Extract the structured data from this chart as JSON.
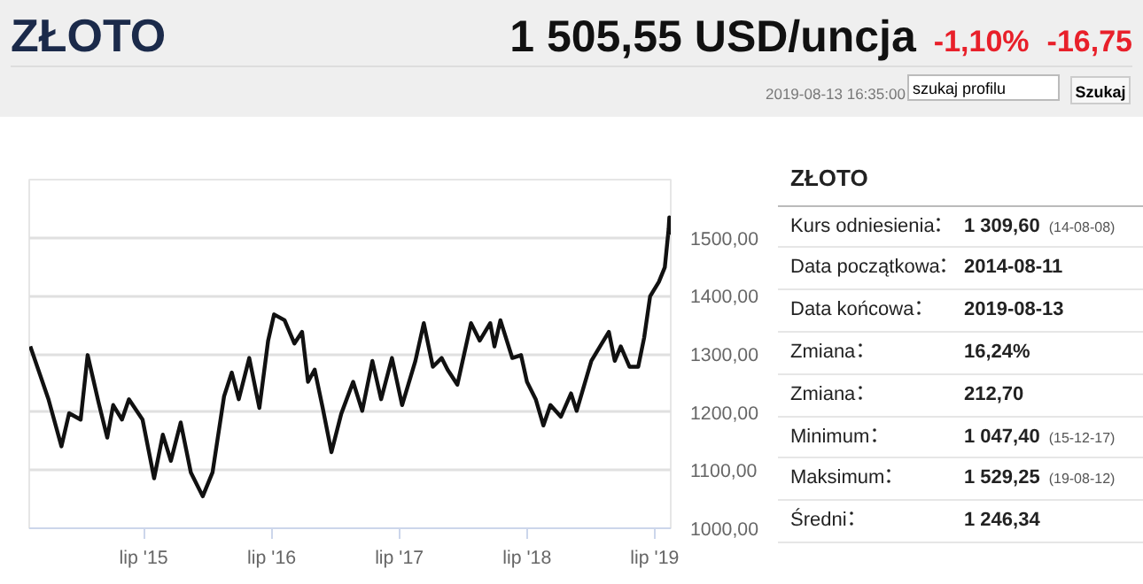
{
  "chart_data": [
    {
      "type": "line",
      "title": "ZŁOTO",
      "annotations": [
        "1 505,55 USD/uncja",
        "-1,10%",
        "-16,75",
        "2019-08-13 16:35:00",
        "szukaj profilu",
        "Szukaj"
      ],
      "x": [
        "2014-08-11",
        "2014-10-02",
        "2014-11-08",
        "2014-11-30",
        "2015-01-02",
        "2015-01-22",
        "2015-02-22",
        "2015-03-19",
        "2015-04-05",
        "2015-04-30",
        "2015-05-20",
        "2015-06-28",
        "2015-07-31",
        "2015-08-25",
        "2015-09-17",
        "2015-10-15",
        "2015-11-13",
        "2015-12-17",
        "2016-01-14",
        "2016-02-16",
        "2016-03-09",
        "2016-03-29",
        "2016-04-28",
        "2016-05-27",
        "2016-06-21",
        "2016-07-08",
        "2016-08-07",
        "2016-09-04",
        "2016-09-26",
        "2016-10-13",
        "2016-11-01",
        "2016-11-24",
        "2016-12-19",
        "2017-01-16",
        "2017-02-19",
        "2017-03-17",
        "2017-04-15",
        "2017-05-10",
        "2017-06-10",
        "2017-07-09",
        "2017-08-16",
        "2017-09-09",
        "2017-10-05",
        "2017-10-30",
        "2017-11-16",
        "2017-12-14",
        "2018-01-22",
        "2018-02-16",
        "2018-03-18",
        "2018-03-30",
        "2018-04-16",
        "2018-05-20",
        "2018-06-14",
        "2018-07-01",
        "2018-07-26",
        "2018-08-17",
        "2018-09-06",
        "2018-10-06",
        "2018-11-04",
        "2018-11-20",
        "2019-01-01",
        "2019-01-31",
        "2019-02-20",
        "2019-03-09",
        "2019-03-26",
        "2019-04-20",
        "2019-05-15",
        "2019-06-01",
        "2019-06-18",
        "2019-07-13",
        "2019-07-30",
        "2019-08-10",
        "2019-08-12",
        "2019-08-13"
      ],
      "series": [
        {
          "color": "#111111",
          "values": [
            1313,
            1222,
            1141,
            1198,
            1187,
            1298,
            1217,
            1156,
            1212,
            1187,
            1222,
            1187,
            1086,
            1161,
            1116,
            1182,
            1096,
            1055,
            1096,
            1227,
            1268,
            1222,
            1293,
            1207,
            1323,
            1368,
            1358,
            1318,
            1338,
            1252,
            1273,
            1207,
            1131,
            1197,
            1252,
            1202,
            1288,
            1222,
            1293,
            1212,
            1288,
            1353,
            1278,
            1293,
            1273,
            1247,
            1353,
            1323,
            1353,
            1313,
            1358,
            1293,
            1298,
            1252,
            1222,
            1177,
            1212,
            1192,
            1232,
            1202,
            1288,
            1318,
            1338,
            1288,
            1313,
            1278,
            1278,
            1328,
            1399,
            1424,
            1449,
            1515,
            1535,
            1505
          ]
        }
      ],
      "xlim": [
        "2014-08-08",
        "2019-08-16"
      ],
      "xticks": [
        {
          "value": "2015-07-01",
          "label": "lip '15"
        },
        {
          "value": "2016-07-01",
          "label": "lip '16"
        },
        {
          "value": "2017-07-01",
          "label": "lip '17"
        },
        {
          "value": "2018-07-01",
          "label": "lip '18"
        },
        {
          "value": "2019-07-01",
          "label": "lip '19"
        }
      ],
      "ylim": [
        1000,
        1600
      ],
      "yticks": [
        {
          "value": 1000,
          "label": "1000,00"
        },
        {
          "value": 1100,
          "label": "1100,00"
        },
        {
          "value": 1200,
          "label": "1200,00"
        },
        {
          "value": 1300,
          "label": "1300,00"
        },
        {
          "value": 1400,
          "label": "1400,00"
        },
        {
          "value": 1500,
          "label": "1500,00"
        },
        {
          "value": 1600,
          "label": null
        }
      ],
      "grid": "y"
    },
    {
      "type": "other",
      "title": "ZŁOTO",
      "categories": [
        "Kurs odniesienia",
        "Data początkowa",
        "Data końcowa",
        "Zmiana",
        "Zmiana",
        "Minimum",
        "Maksimum",
        "Średni"
      ],
      "value_labels": [
        "1 309,60",
        "2014-08-11",
        "2019-08-13",
        "16,24%",
        "212,70",
        "1 047,40",
        "1 529,25",
        "1 246,34"
      ],
      "annotations": [
        "(14-08-08)",
        "(15-12-17)",
        "(19-08-12)"
      ]
    }
  ]
}
